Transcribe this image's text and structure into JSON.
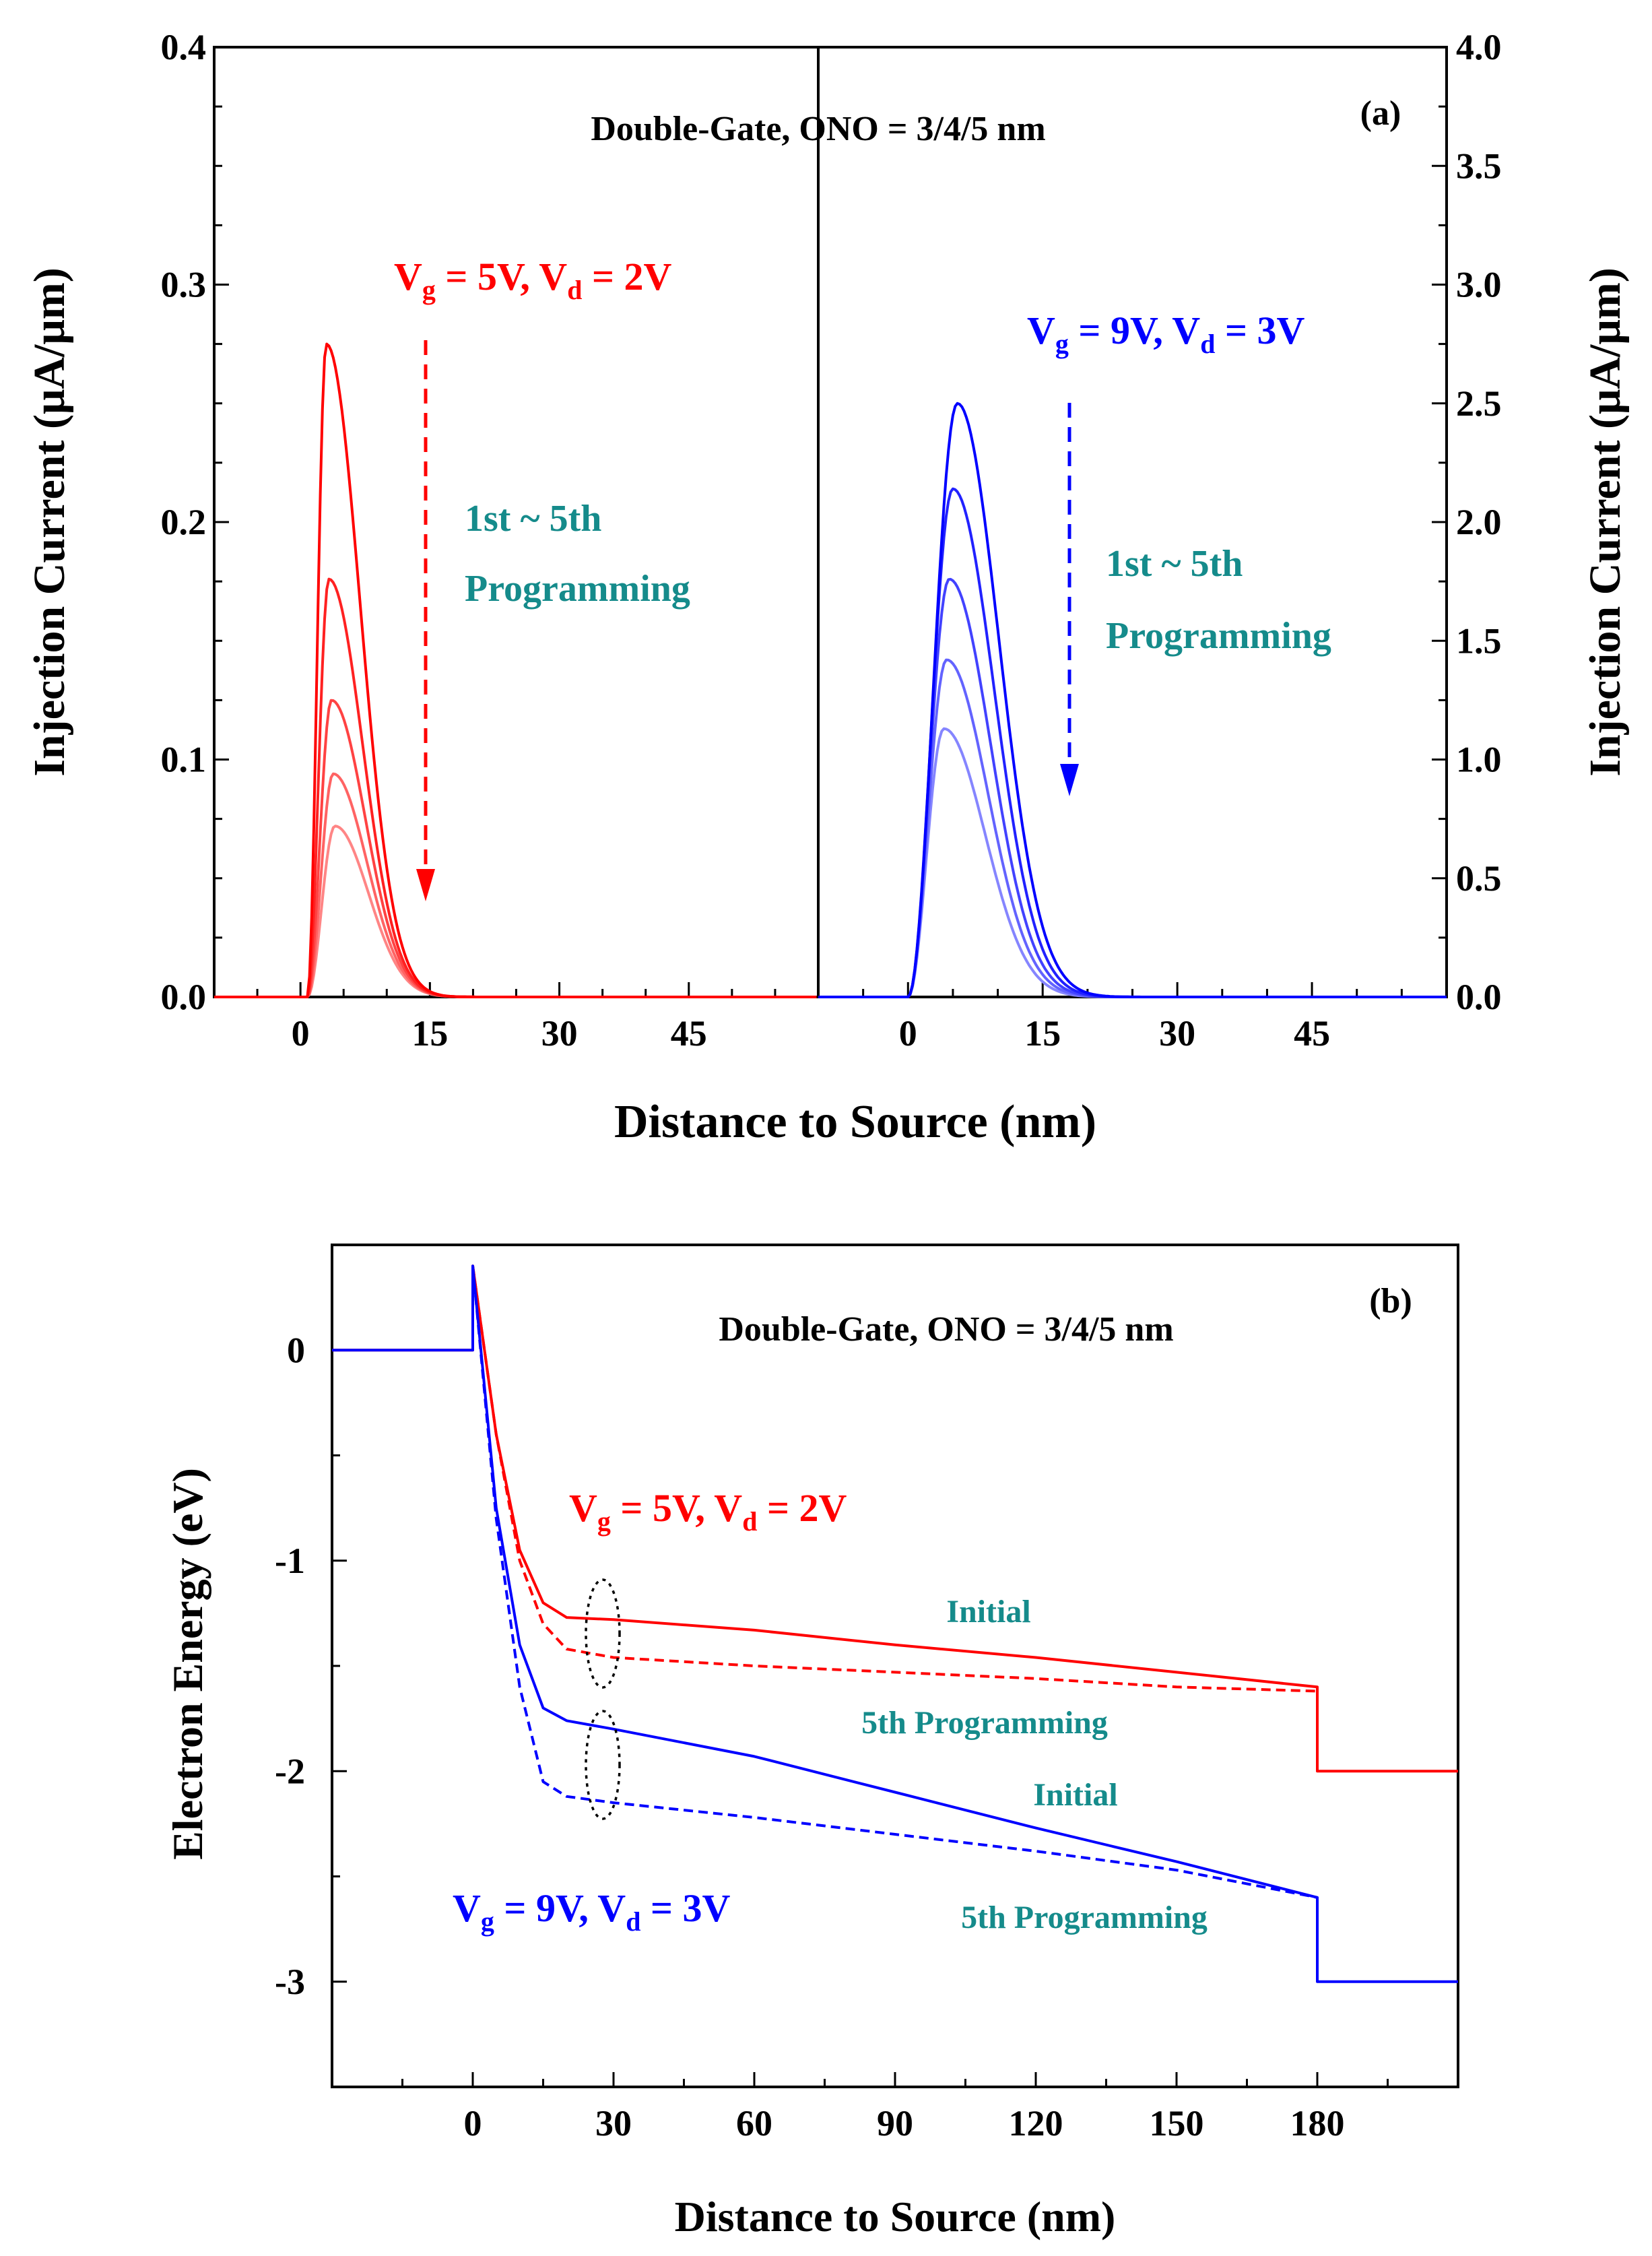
{
  "chart_data": [
    {
      "panel": "(a)",
      "type": "line",
      "title": "Double-Gate, ONO = 3/4/5 nm",
      "xlabel": "Distance to Source (nm)",
      "ylabel_left": "Injection Current (μA/μm)",
      "ylabel_right": "Injection Current (μA/μm)",
      "left_panel": {
        "condition": {
          "pre": "V",
          "sub1": "g",
          "mid": " = 5V, V",
          "sub2": "d",
          "post": " = 2V"
        },
        "annotation": [
          "1st ~ 5th",
          "Programming"
        ],
        "color": "#ff0000",
        "ylim": [
          0,
          0.4
        ],
        "yticks": [
          "0.0",
          "0.1",
          "0.2",
          "0.3",
          "0.4"
        ],
        "xlim": [
          -10,
          60
        ],
        "xticks": [
          "0",
          "15",
          "30",
          "45"
        ],
        "series": [
          {
            "name": "1st",
            "peak_x": 3.0,
            "peak": 0.275
          },
          {
            "name": "2nd",
            "peak_x": 3.3,
            "peak": 0.176
          },
          {
            "name": "3rd",
            "peak_x": 3.6,
            "peak": 0.125
          },
          {
            "name": "4th",
            "peak_x": 3.8,
            "peak": 0.094
          },
          {
            "name": "5th",
            "peak_x": 4.0,
            "peak": 0.072
          }
        ]
      },
      "right_panel": {
        "condition": {
          "pre": "V",
          "sub1": "g",
          "mid": " = 9V, V",
          "sub2": "d",
          "post": " = 3V"
        },
        "annotation": [
          "1st ~ 5th",
          "Programming"
        ],
        "color": "#0000ff",
        "ylim": [
          0,
          4.0
        ],
        "yticks": [
          "0.0",
          "0.5",
          "1.0",
          "1.5",
          "2.0",
          "2.5",
          "3.0",
          "3.5",
          "4.0"
        ],
        "xlim": [
          -10,
          60
        ],
        "xticks": [
          "0",
          "15",
          "30",
          "45"
        ],
        "series": [
          {
            "name": "1st",
            "peak_x": 5.5,
            "peak": 2.5
          },
          {
            "name": "2nd",
            "peak_x": 5.0,
            "peak": 2.14
          },
          {
            "name": "3rd",
            "peak_x": 4.6,
            "peak": 1.76
          },
          {
            "name": "4th",
            "peak_x": 4.3,
            "peak": 1.42
          },
          {
            "name": "5th",
            "peak_x": 4.0,
            "peak": 1.13
          }
        ]
      }
    },
    {
      "panel": "(b)",
      "type": "line",
      "title": "Double-Gate, ONO = 3/4/5 nm",
      "xlabel": "Distance to Source (nm)",
      "ylabel": "Electron Energy (eV)",
      "xlim": [
        -30,
        210
      ],
      "ylim": [
        -3.5,
        0.5
      ],
      "xticks": [
        "0",
        "30",
        "60",
        "90",
        "120",
        "150",
        "180"
      ],
      "yticks": [
        "0",
        "-1",
        "-2",
        "-3"
      ],
      "labels": {
        "red_condition": {
          "pre": "V",
          "sub1": "g",
          "mid": " = 5V, V",
          "sub2": "d",
          "post": " = 2V"
        },
        "blue_condition": {
          "pre": "V",
          "sub1": "g",
          "mid": " = 9V, V",
          "sub2": "d",
          "post": " = 3V"
        },
        "initial_red": "Initial",
        "fifth_red": "5th Programming",
        "initial_blue": "Initial",
        "fifth_blue": "5th Programming"
      },
      "series": [
        {
          "name": "Vg=5V,Vd=2V Initial",
          "color": "#ff0000",
          "style": "solid",
          "x": [
            -30,
            0,
            0,
            5,
            10,
            15,
            20,
            30,
            60,
            90,
            120,
            150,
            180,
            180,
            210
          ],
          "y": [
            0,
            0,
            0.4,
            -0.4,
            -0.95,
            -1.2,
            -1.27,
            -1.28,
            -1.33,
            -1.4,
            -1.46,
            -1.53,
            -1.6,
            -2.0,
            -2.0
          ]
        },
        {
          "name": "Vg=5V,Vd=2V 5th Programming",
          "color": "#ff0000",
          "style": "dashed",
          "x": [
            0,
            5,
            10,
            15,
            20,
            30,
            60,
            90,
            120,
            150,
            180
          ],
          "y": [
            0.4,
            -0.4,
            -1.0,
            -1.3,
            -1.42,
            -1.46,
            -1.5,
            -1.53,
            -1.56,
            -1.6,
            -1.62
          ]
        },
        {
          "name": "Vg=9V,Vd=3V Initial",
          "color": "#0000ff",
          "style": "solid",
          "x": [
            -30,
            0,
            0,
            5,
            10,
            15,
            20,
            30,
            60,
            90,
            120,
            150,
            180,
            180,
            210
          ],
          "y": [
            0,
            0,
            0.4,
            -0.75,
            -1.4,
            -1.7,
            -1.76,
            -1.8,
            -1.93,
            -2.1,
            -2.27,
            -2.43,
            -2.6,
            -3.0,
            -3.0
          ]
        },
        {
          "name": "Vg=9V,Vd=3V 5th Programming",
          "color": "#0000ff",
          "style": "dashed",
          "x": [
            0,
            5,
            10,
            15,
            20,
            30,
            60,
            90,
            120,
            150,
            180
          ],
          "y": [
            0.4,
            -0.8,
            -1.6,
            -2.05,
            -2.12,
            -2.15,
            -2.22,
            -2.3,
            -2.38,
            -2.47,
            -2.6
          ]
        }
      ]
    }
  ]
}
